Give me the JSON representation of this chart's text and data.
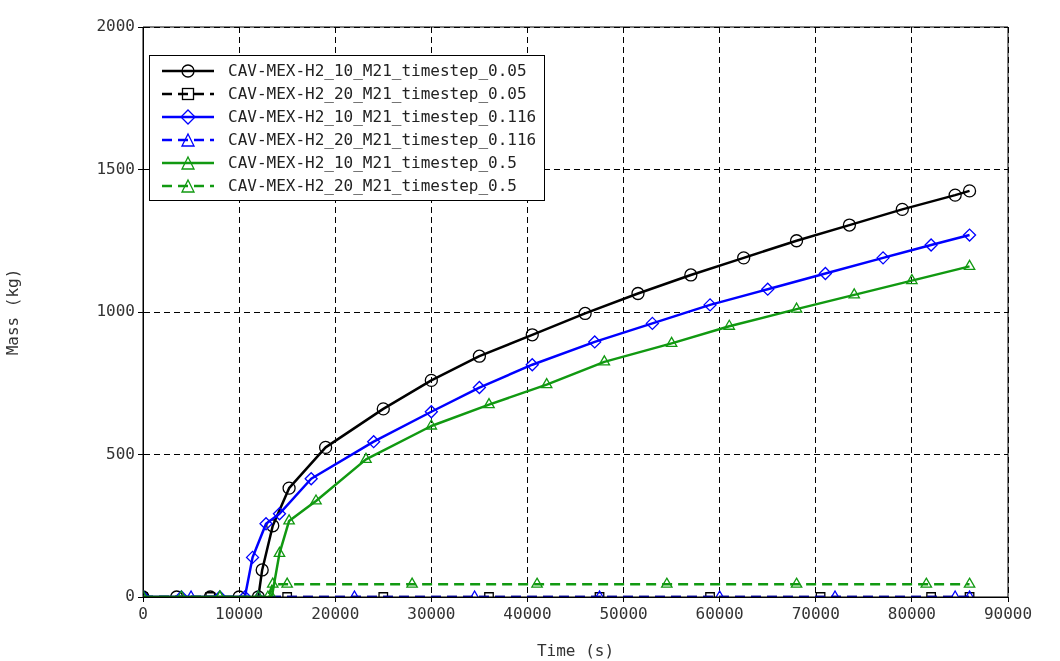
{
  "chart_data": {
    "type": "line",
    "xlabel": "Time (s)",
    "ylabel": "Mass (kg)",
    "xlim": [
      0,
      90000
    ],
    "ylim": [
      0,
      2000
    ],
    "xticks": [
      0,
      10000,
      20000,
      30000,
      40000,
      50000,
      60000,
      70000,
      80000,
      90000
    ],
    "yticks": [
      0,
      500,
      1000,
      1500,
      2000
    ],
    "grid": true,
    "legend": "top left",
    "series": [
      {
        "name": "CAV-MEX-H2_10_M21_timestep_0.05",
        "color": "#000000",
        "marker": "circle",
        "line_style": "solid",
        "x": [
          0,
          3500,
          7000,
          10000,
          12000,
          12400,
          13500,
          15200,
          19000,
          25000,
          30000,
          35000,
          40500,
          46000,
          51500,
          57000,
          62500,
          68000,
          73500,
          79000,
          84500,
          86000
        ],
        "values": [
          0,
          0,
          0,
          0,
          0,
          95,
          250,
          382,
          525,
          660,
          760,
          845,
          920,
          995,
          1065,
          1130,
          1190,
          1250,
          1305,
          1360,
          1410,
          1425
        ]
      },
      {
        "name": "CAV-MEX-H2_20_M21_timestep_0.05",
        "color": "#000000",
        "marker": "square",
        "line_style": "dashed",
        "x": [
          0,
          7000,
          15000,
          25000,
          36000,
          47500,
          59000,
          70500,
          82000,
          86000
        ],
        "values": [
          0,
          0,
          0,
          0,
          0,
          0,
          0,
          0,
          0,
          0
        ]
      },
      {
        "name": "CAV-MEX-H2_10_M21_timestep_0.116",
        "color": "#0000ff",
        "marker": "diamond",
        "line_style": "solid",
        "x": [
          0,
          4000,
          8000,
          10600,
          11400,
          12800,
          14200,
          17500,
          24000,
          30000,
          35000,
          40500,
          47000,
          53000,
          59000,
          65000,
          71000,
          77000,
          82000,
          86000
        ],
        "values": [
          0,
          0,
          0,
          0,
          139,
          257,
          292,
          415,
          545,
          650,
          735,
          815,
          895,
          960,
          1025,
          1080,
          1135,
          1190,
          1235,
          1270
        ]
      },
      {
        "name": "CAV-MEX-H2_20_M21_timestep_0.116",
        "color": "#0000ff",
        "marker": "triangle",
        "line_style": "dashed",
        "x": [
          0,
          5000,
          12000,
          22000,
          34500,
          47500,
          60000,
          72000,
          84500,
          86000
        ],
        "values": [
          0,
          0,
          0,
          0,
          0,
          0,
          0,
          0,
          0,
          0
        ]
      },
      {
        "name": "CAV-MEX-H2_10_M21_timestep_0.5",
        "color": "#119911",
        "marker": "triangle",
        "line_style": "solid",
        "x": [
          0,
          4000,
          8000,
          12000,
          13400,
          14200,
          15200,
          18000,
          23200,
          30000,
          36000,
          42000,
          48000,
          55000,
          61000,
          68000,
          74000,
          80000,
          86000
        ],
        "values": [
          0,
          0,
          0,
          0,
          0,
          153,
          267,
          337,
          483,
          600,
          675,
          745,
          825,
          890,
          950,
          1010,
          1060,
          1110,
          1160
        ]
      },
      {
        "name": "CAV-MEX-H2_20_M21_timestep_0.5",
        "color": "#119911",
        "marker": "triangle",
        "line_style": "dashed",
        "x": [
          0,
          8000,
          13000,
          13500,
          15000,
          28000,
          41000,
          54500,
          68000,
          81500,
          86000
        ],
        "values": [
          0,
          0,
          0,
          45,
          45,
          45,
          45,
          45,
          45,
          45,
          45
        ]
      }
    ]
  }
}
